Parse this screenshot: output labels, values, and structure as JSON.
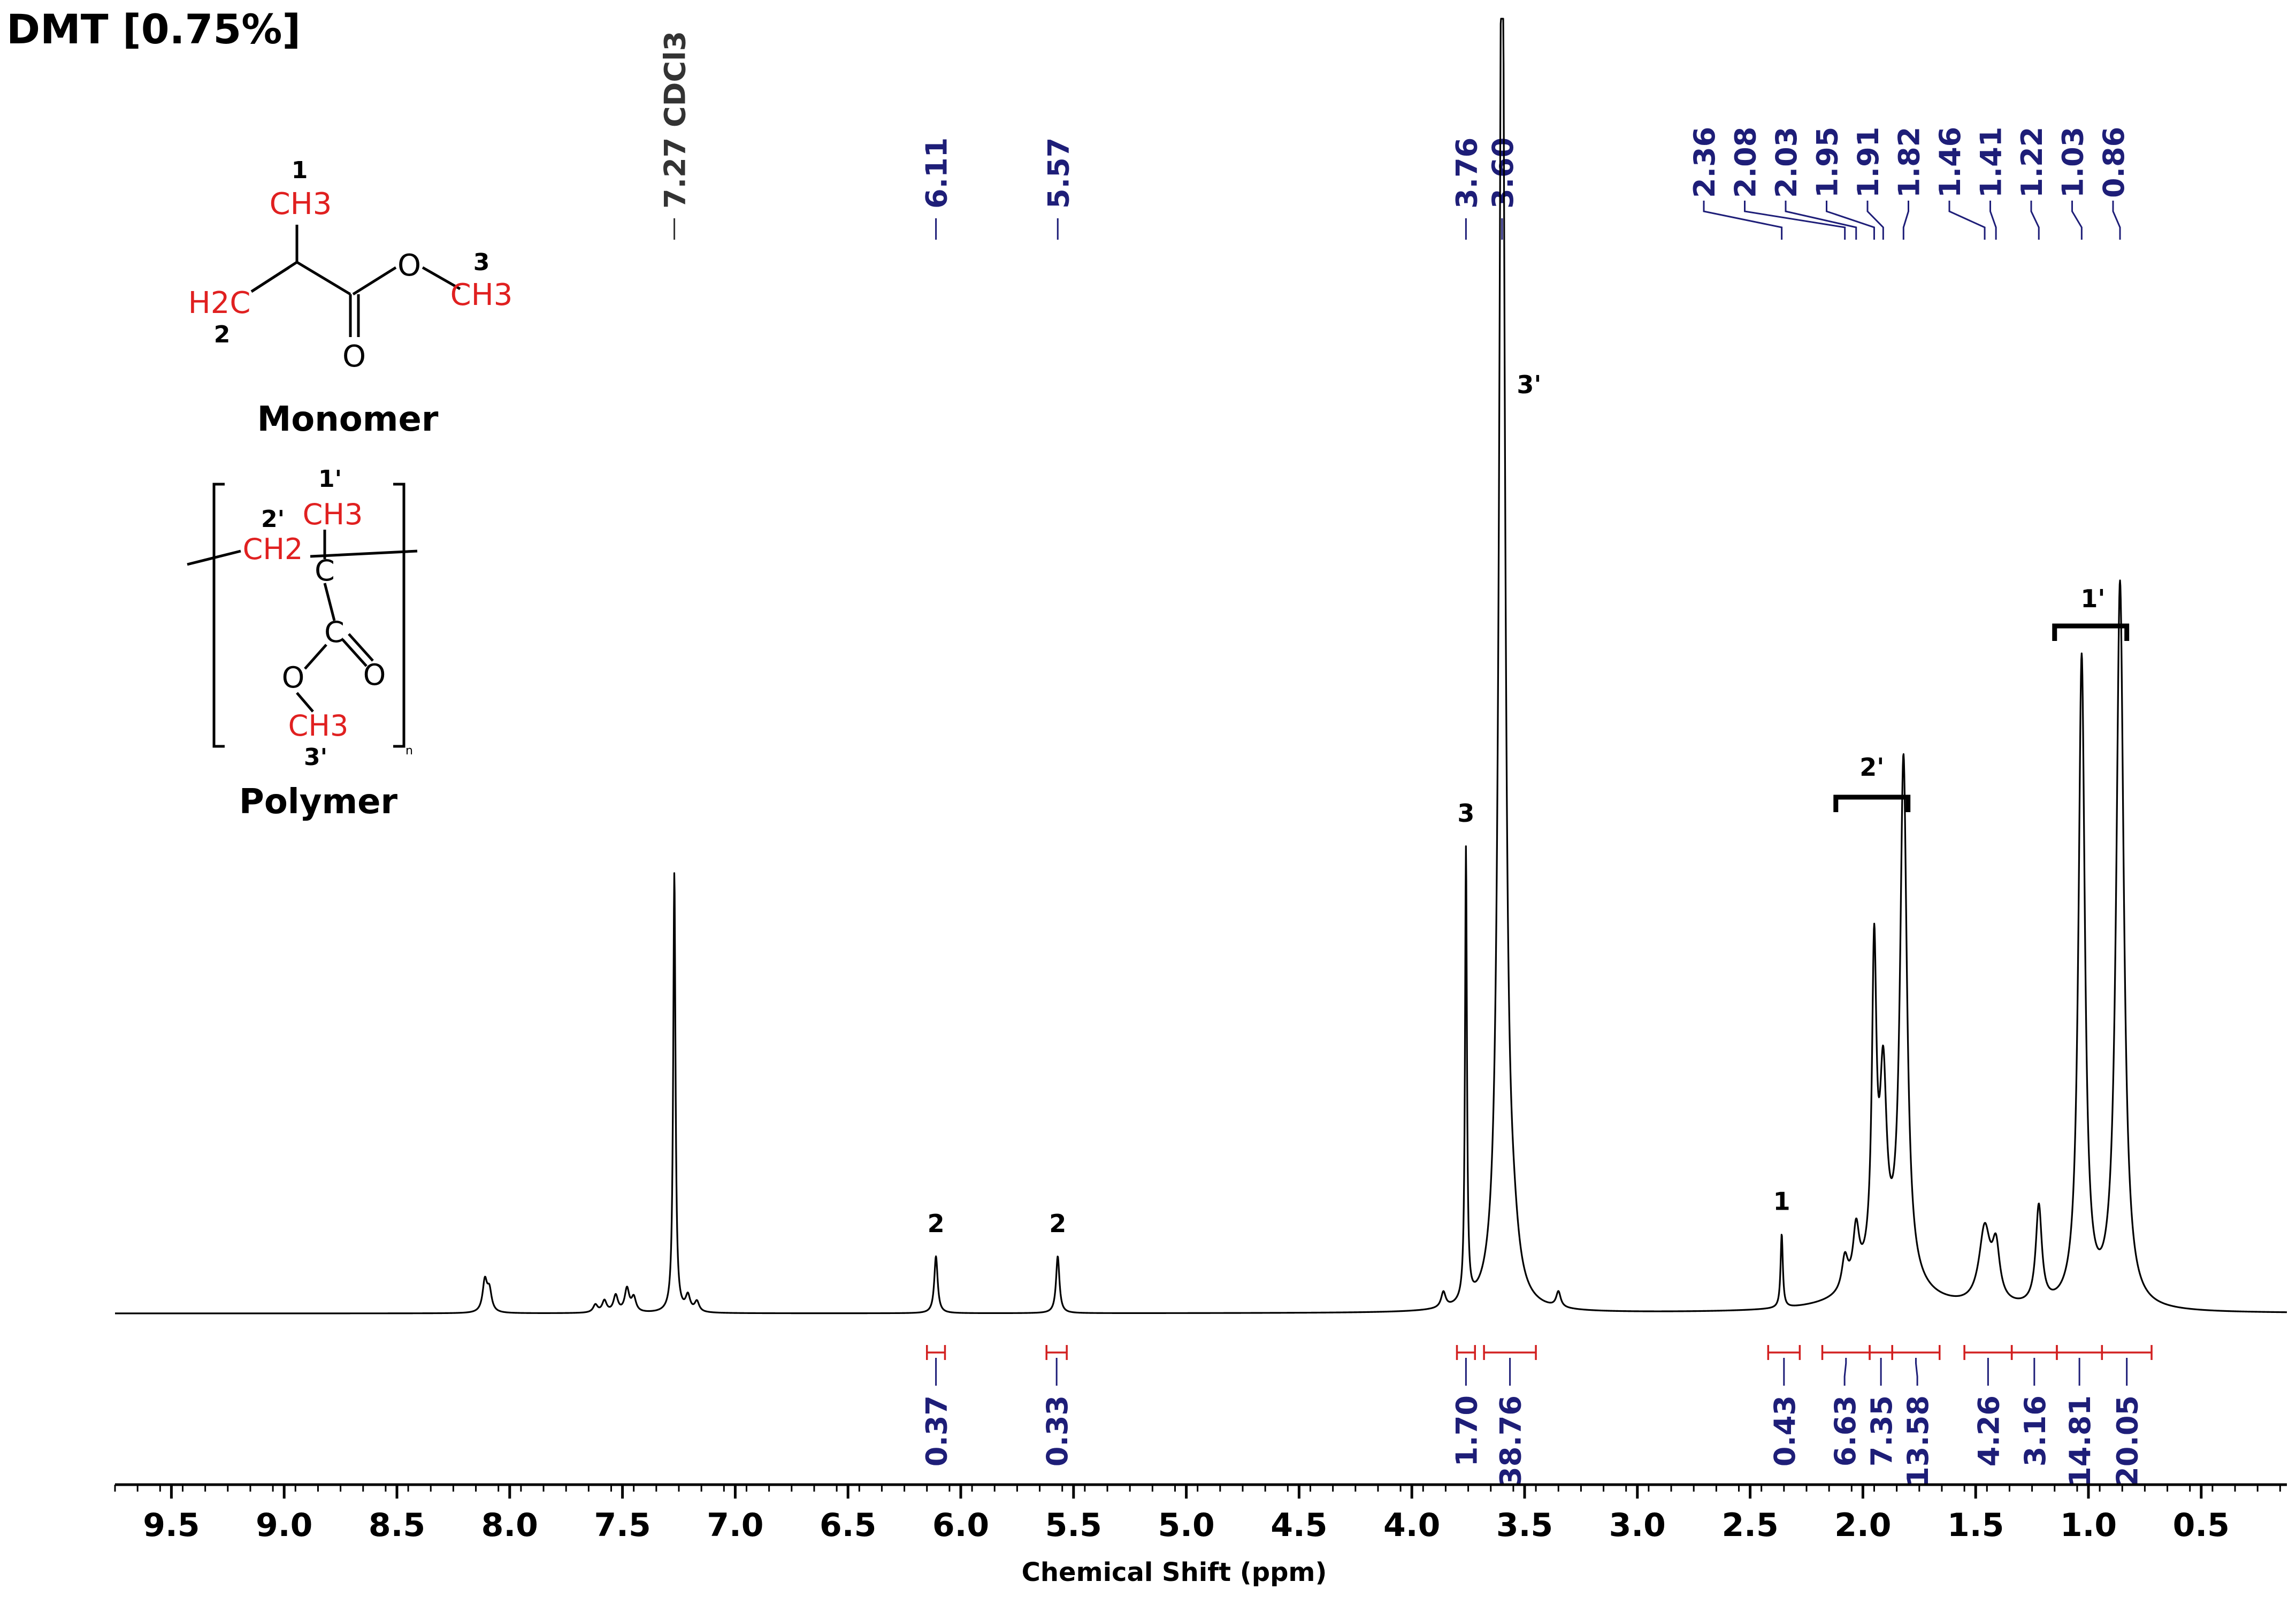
{
  "title": "DMT [0.75%]",
  "colors": {
    "peak_label": "#1e1e78",
    "integral": "#d22020",
    "trace": "#000000",
    "atom_red": "#e02020"
  },
  "chart_data": {
    "type": "line",
    "title": "DMT [0.75%]",
    "xlabel": "Chemical Shift (ppm)",
    "ylabel": "",
    "x_reversed": true,
    "xlim": [
      9.75,
      0.12
    ],
    "xticks": [
      "9.5",
      "9.0",
      "8.5",
      "8.0",
      "7.5",
      "7.0",
      "6.5",
      "6.0",
      "5.5",
      "5.0",
      "4.5",
      "4.0",
      "3.5",
      "3.0",
      "2.5",
      "2.0",
      "1.5",
      "1.0",
      "0.5"
    ],
    "series": [
      {
        "peaks": [
          {
            "x": 8.11,
            "h": 0.024,
            "w": 0.012
          },
          {
            "x": 8.09,
            "h": 0.016,
            "w": 0.012
          },
          {
            "x": 7.62,
            "h": 0.006,
            "w": 0.012
          },
          {
            "x": 7.58,
            "h": 0.009,
            "w": 0.012
          },
          {
            "x": 7.53,
            "h": 0.013,
            "w": 0.012
          },
          {
            "x": 7.48,
            "h": 0.018,
            "w": 0.012
          },
          {
            "x": 7.45,
            "h": 0.011,
            "w": 0.012
          },
          {
            "x": 7.27,
            "h": 0.34,
            "w": 0.006
          },
          {
            "x": 7.21,
            "h": 0.012,
            "w": 0.012
          },
          {
            "x": 7.17,
            "h": 0.008,
            "w": 0.012
          },
          {
            "x": 6.11,
            "h": 0.044,
            "w": 0.009
          },
          {
            "x": 5.57,
            "h": 0.044,
            "w": 0.009
          },
          {
            "x": 3.86,
            "h": 0.012,
            "w": 0.012
          },
          {
            "x": 3.76,
            "h": 0.35,
            "w": 0.005
          },
          {
            "x": 3.6,
            "h": 1.15,
            "w": 0.015
          },
          {
            "x": 3.55,
            "h": 0.03,
            "w": 0.03
          },
          {
            "x": 3.35,
            "h": 0.012,
            "w": 0.012
          },
          {
            "x": 2.36,
            "h": 0.057,
            "w": 0.006
          },
          {
            "x": 2.08,
            "h": 0.025,
            "w": 0.016
          },
          {
            "x": 2.03,
            "h": 0.042,
            "w": 0.016
          },
          {
            "x": 1.95,
            "h": 0.24,
            "w": 0.012
          },
          {
            "x": 1.91,
            "h": 0.14,
            "w": 0.018
          },
          {
            "x": 1.82,
            "h": 0.4,
            "w": 0.018
          },
          {
            "x": 1.9,
            "h": 0.03,
            "w": 0.15
          },
          {
            "x": 1.46,
            "h": 0.058,
            "w": 0.03
          },
          {
            "x": 1.41,
            "h": 0.04,
            "w": 0.02
          },
          {
            "x": 1.22,
            "h": 0.076,
            "w": 0.016
          },
          {
            "x": 1.03,
            "h": 0.5,
            "w": 0.017
          },
          {
            "x": 0.86,
            "h": 0.56,
            "w": 0.02
          }
        ]
      }
    ],
    "peak_labels": [
      {
        "x": 7.27,
        "text": "7.27 CDCl3"
      },
      {
        "x": 6.11,
        "text": "6.11"
      },
      {
        "x": 5.57,
        "text": "5.57"
      },
      {
        "x": 3.76,
        "text": "3.76"
      },
      {
        "x": 3.6,
        "text": "3.60"
      },
      {
        "x": 2.36,
        "text": "2.36"
      },
      {
        "x": 2.08,
        "text": "2.08"
      },
      {
        "x": 2.03,
        "text": "2.03"
      },
      {
        "x": 1.95,
        "text": "1.95"
      },
      {
        "x": 1.91,
        "text": "1.91"
      },
      {
        "x": 1.82,
        "text": "1.82"
      },
      {
        "x": 1.46,
        "text": "1.46"
      },
      {
        "x": 1.41,
        "text": "1.41"
      },
      {
        "x": 1.22,
        "text": "1.22"
      },
      {
        "x": 1.03,
        "text": "1.03"
      },
      {
        "x": 0.86,
        "text": "0.86"
      }
    ],
    "integrals": [
      {
        "from": 6.15,
        "to": 6.07,
        "value": "0.37"
      },
      {
        "from": 5.62,
        "to": 5.53,
        "value": "0.33"
      },
      {
        "from": 3.8,
        "to": 3.72,
        "value": "1.70"
      },
      {
        "from": 3.68,
        "to": 3.45,
        "value": "38.76"
      },
      {
        "from": 2.42,
        "to": 2.28,
        "value": "0.43"
      },
      {
        "from": 2.18,
        "to": 1.97,
        "value": "6.63"
      },
      {
        "from": 1.97,
        "to": 1.87,
        "value": "7.35"
      },
      {
        "from": 1.87,
        "to": 1.66,
        "value": "13.58"
      },
      {
        "from": 1.55,
        "to": 1.34,
        "value": "4.26"
      },
      {
        "from": 1.34,
        "to": 1.14,
        "value": "3.16"
      },
      {
        "from": 1.14,
        "to": 0.94,
        "value": "14.81"
      },
      {
        "from": 0.94,
        "to": 0.72,
        "value": "20.05"
      }
    ],
    "assignments": [
      {
        "x": 6.11,
        "text": "2"
      },
      {
        "x": 5.57,
        "text": "2"
      },
      {
        "x": 3.76,
        "text": "3"
      },
      {
        "x": 3.48,
        "text": "3'"
      },
      {
        "x": 2.36,
        "text": "1"
      },
      {
        "x": 1.96,
        "text": "2'"
      },
      {
        "x": 0.98,
        "text": "1'"
      }
    ],
    "brackets": [
      {
        "from": 2.12,
        "to": 1.8,
        "text": "2'"
      },
      {
        "from": 1.15,
        "to": 0.83,
        "text": "1'"
      }
    ]
  },
  "structures": {
    "monomer": {
      "name": "Monomer",
      "ch3_top": "CH3",
      "ch3_top_num": "1",
      "h2c": "H2C",
      "h2c_num": "2",
      "o_ester": "O",
      "o_carbonyl": "O",
      "ch3_ester": "CH3",
      "ch3_ester_num": "3"
    },
    "polymer": {
      "name": "Polymer",
      "ch3_top": "CH3",
      "ch3_top_num": "1'",
      "ch2": "CH2",
      "ch2_num": "2'",
      "c_center": "C",
      "c_carbonyl": "C",
      "o_ester": "O",
      "o_carbonyl": "O",
      "ch3_ester": "CH3",
      "ch3_ester_num": "3'",
      "subscript_n": "n"
    }
  }
}
